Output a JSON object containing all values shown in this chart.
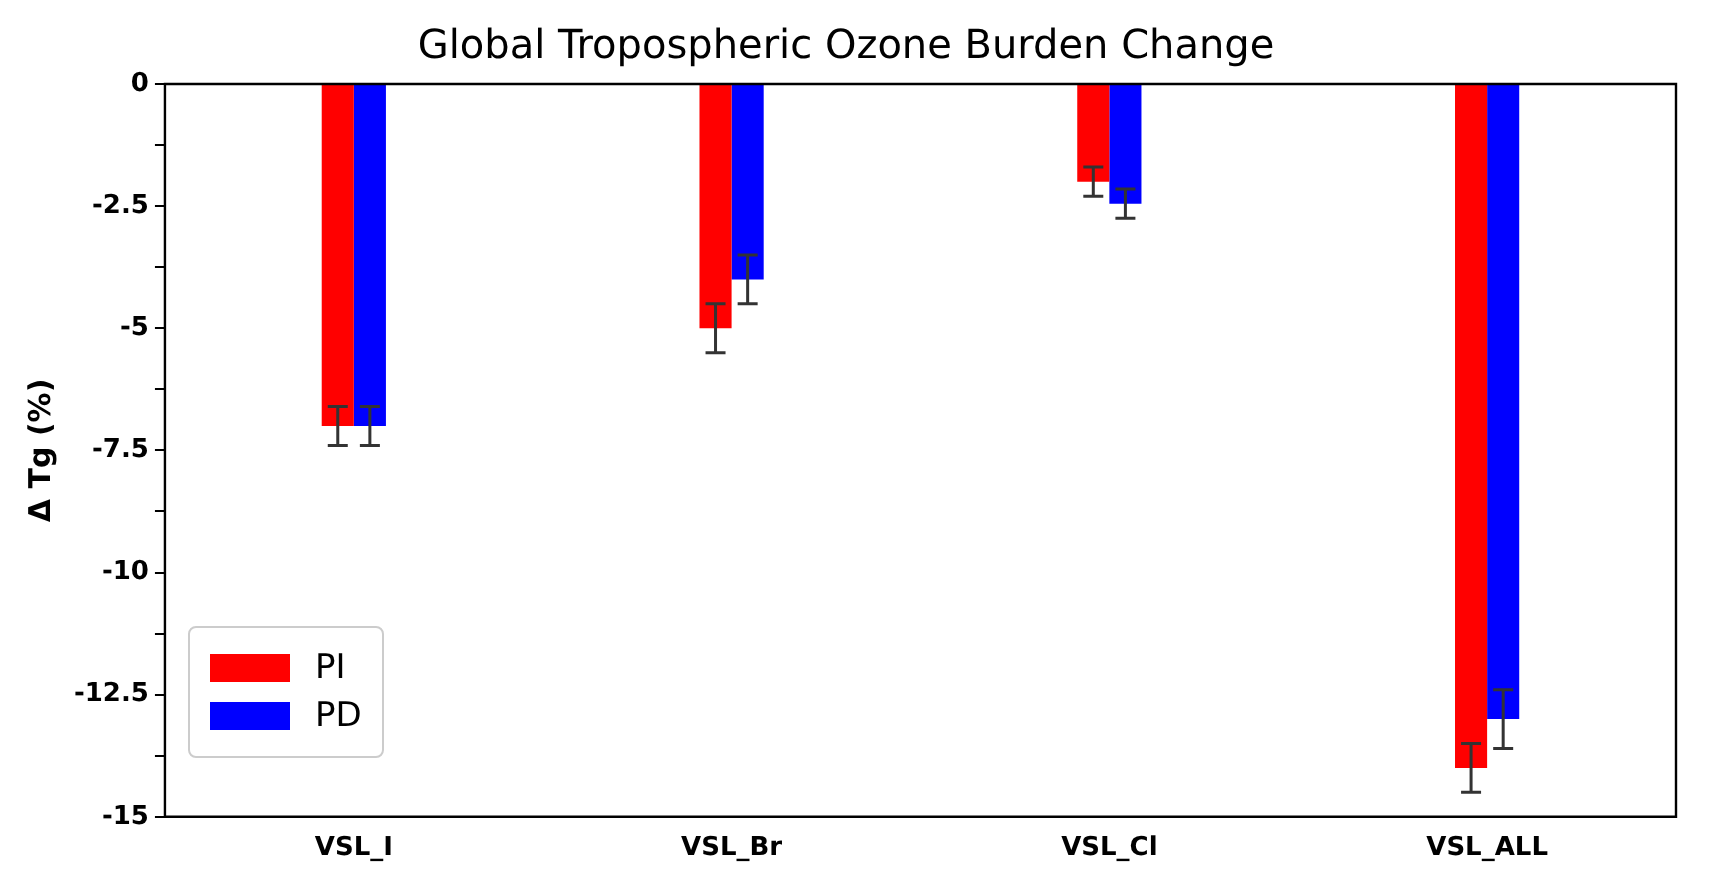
{
  "chart_data": {
    "type": "bar",
    "title": "Global Tropospheric Ozone Burden Change",
    "ylabel": "Δ Tg (%)",
    "categories": [
      "VSL_I",
      "VSL_Br",
      "VSL_Cl",
      "VSL_ALL"
    ],
    "series": [
      {
        "name": "PI",
        "color": "#ff0000",
        "values": [
          -7,
          -5,
          -2,
          -14
        ],
        "errors": [
          0.4,
          0.5,
          0.3,
          0.5
        ]
      },
      {
        "name": "PD",
        "color": "#0000ff",
        "values": [
          -7,
          -4,
          -2.45,
          -13
        ],
        "errors": [
          0.4,
          0.5,
          0.3,
          0.6
        ]
      }
    ],
    "ylim": [
      -15,
      0
    ],
    "yticks": [
      0,
      {
        "value": -1.25,
        "label": null
      },
      -2.5,
      {
        "value": -3.75,
        "label": null
      },
      -5,
      {
        "value": -6.25,
        "label": null
      },
      -7.5,
      {
        "value": -8.75,
        "label": null
      },
      -10,
      {
        "value": -11.25,
        "label": null
      },
      -12.5,
      {
        "value": -13.75,
        "label": null
      },
      -15
    ],
    "grid": false,
    "legend": "bottom left"
  }
}
